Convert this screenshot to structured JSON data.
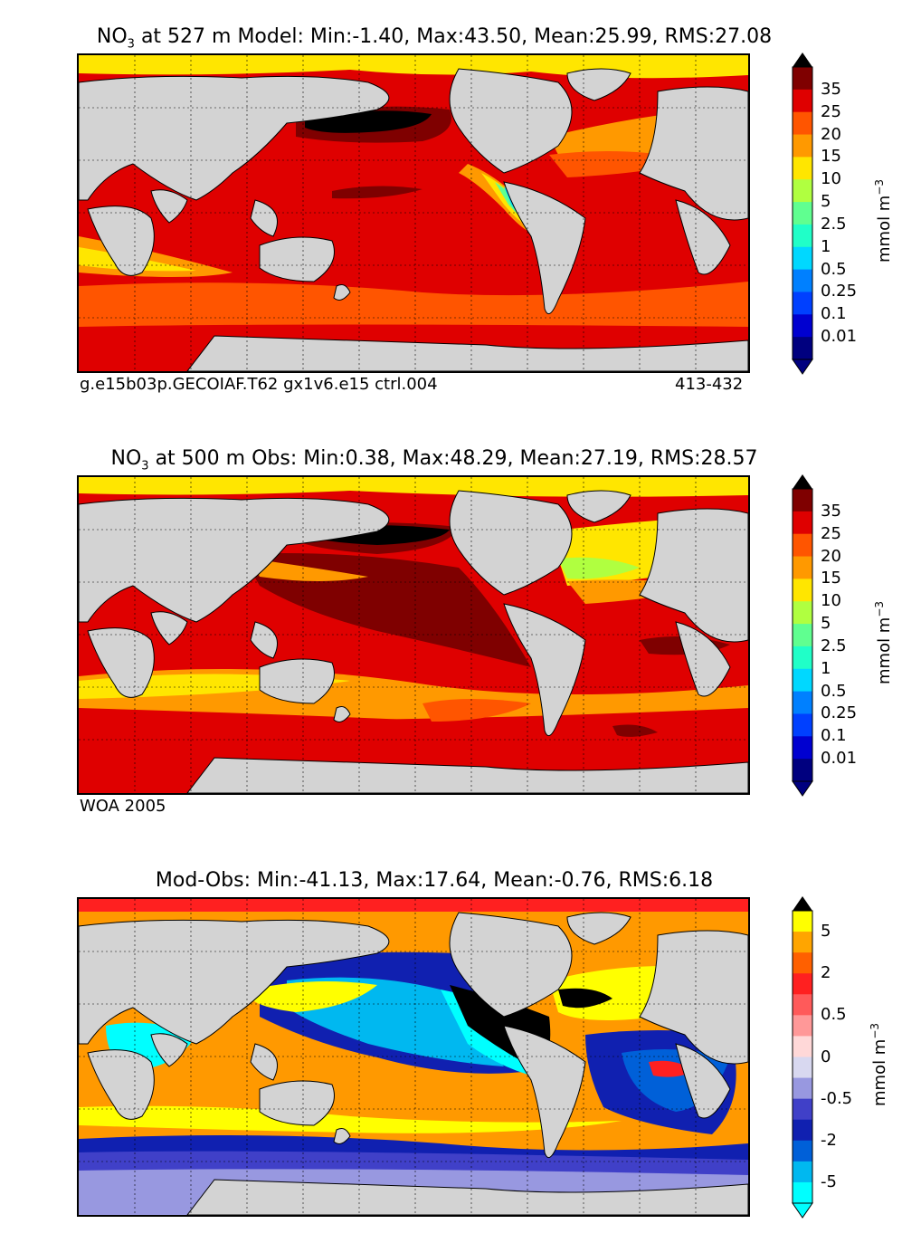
{
  "panels": [
    {
      "title_prefix": "NO",
      "title_sub": "3",
      "title_suffix": " at 527 m Model: Min:-1.40, Max:43.50, Mean:25.99, RMS:27.08",
      "footer_left": "g.e15b03p.GECOIAF.T62 gx1v6.e15 ctrl.004",
      "footer_right": "413-432",
      "units": "mmol m",
      "units_sup": "−3"
    },
    {
      "title_prefix": "NO",
      "title_sub": "3",
      "title_suffix": " at 500 m Obs: Min:0.38, Max:48.29, Mean:27.19, RMS:28.57",
      "footer_left": "WOA 2005",
      "units": "mmol m",
      "units_sup": "−3"
    },
    {
      "title": "Mod-Obs: Min:-41.13, Max:17.64, Mean:-0.76, RMS:6.18",
      "units": "mmol m",
      "units_sup": "−3"
    }
  ],
  "colorbar_no3": {
    "labels": [
      "35",
      "25",
      "20",
      "15",
      "10",
      "5",
      "2.5",
      "1",
      "0.5",
      "0.25",
      "0.1",
      "0.01"
    ],
    "colors": [
      "#7f0000",
      "#df0000",
      "#ff5500",
      "#ff9900",
      "#ffe600",
      "#b0ff40",
      "#60ff90",
      "#20ffc8",
      "#00d8ff",
      "#0080ff",
      "#0040ff",
      "#0000d0",
      "#00007f"
    ]
  },
  "colorbar_diff": {
    "labels": [
      "5",
      "2",
      "0.5",
      "0",
      "-0.5",
      "-2",
      "-5"
    ],
    "colors": [
      "#ffff00",
      "#ffa500",
      "#ff6000",
      "#ff2020",
      "#ff5a5a",
      "#ff9898",
      "#ffd8d8",
      "#d8d8f0",
      "#9898e0",
      "#4040c8",
      "#1020b0",
      "#0060d8",
      "#00b8f0",
      "#00ffff"
    ]
  },
  "legend": {
    "land_color": "#d3d3d3",
    "missing_color": "#ffffff",
    "extreme_color": "#000000"
  }
}
